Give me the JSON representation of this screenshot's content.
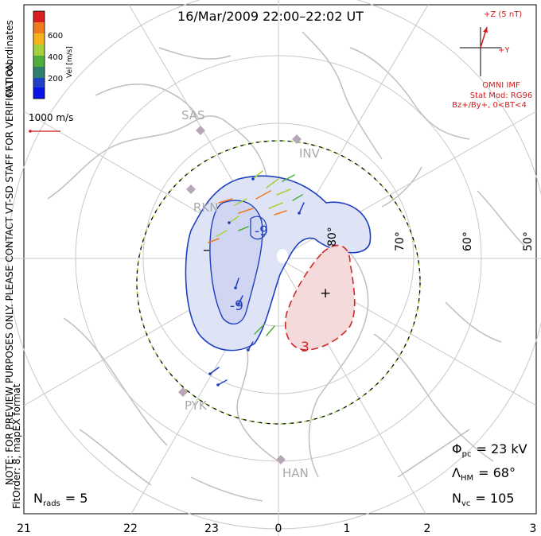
{
  "title": "16/Mar/2009 22:00–22:02 UT",
  "coordinate_system": "MLT coordinates",
  "colorbar": {
    "label": "Vel [m/s]",
    "ticks": [
      "600",
      "400",
      "200"
    ],
    "colors": [
      "#d71f1f",
      "#f07a1e",
      "#f5b21b",
      "#a5d13a",
      "#4fae3a",
      "#2e7f70",
      "#2140c8",
      "#0b14e8"
    ]
  },
  "reference_vector": "1000 m/s",
  "imf": {
    "bz_label": "+Z (5 nT)",
    "by_label": "+Y",
    "source": "OMNI IMF",
    "stat_mod": "Stat Mod: RG96",
    "condition": "Bz+/By+, 0<BT<4"
  },
  "stations": [
    "SAS",
    "INV",
    "RKN",
    "PYK",
    "HAN"
  ],
  "latitude_labels": [
    "80°",
    "70°",
    "60°",
    "50°"
  ],
  "contour_labels": {
    "neg1": "-9",
    "neg2": "-9",
    "pos": "3",
    "min_mark": "–",
    "max_mark": "+"
  },
  "note_text": "NOTE: FOR PREVIEW PURPOSES ONLY. PLEASE CONTACT VT-SD STAFF FOR VERIFICATION.",
  "fit_text": "FitOrder: 8, mapEX format",
  "stats": {
    "phi_pc": {
      "symbol": "Φ",
      "sub": "pc",
      "value": "= 23 kV"
    },
    "lambda_hm": {
      "symbol": "Λ",
      "sub": "HM",
      "value": "= 68°"
    },
    "n_vc": {
      "symbol": "N",
      "sub": "vc",
      "value": "= 105"
    },
    "n_rads": {
      "symbol": "N",
      "sub": "rads",
      "value": "= 5"
    }
  },
  "mlt_axis": [
    "21",
    "22",
    "23",
    "0",
    "1",
    "2",
    "3"
  ],
  "colors": {
    "negative_cell": "#1f3fbf",
    "positive_cell": "#cc2a2a",
    "grid": "#c8c8c8",
    "coast": "#bfbfbf",
    "boundary_green": "#8ed12c",
    "station": "#b8a6b8"
  }
}
